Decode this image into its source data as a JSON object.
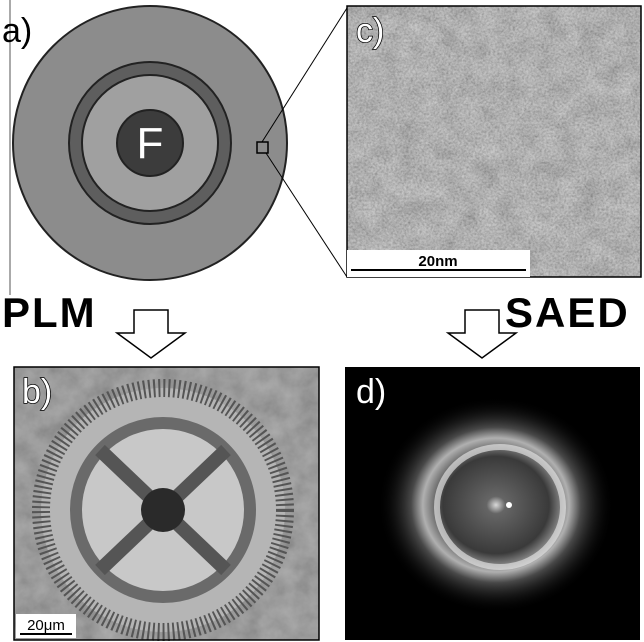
{
  "panel_a": {
    "label": "a)",
    "core_label": "F"
  },
  "panel_b": {
    "label": "b)",
    "scale_bar": "20μm"
  },
  "panel_c": {
    "label": "c)",
    "scale_bar": "20nm"
  },
  "panel_d": {
    "label": "d)"
  },
  "techniques": {
    "left": "PLM",
    "right": "SAED"
  }
}
